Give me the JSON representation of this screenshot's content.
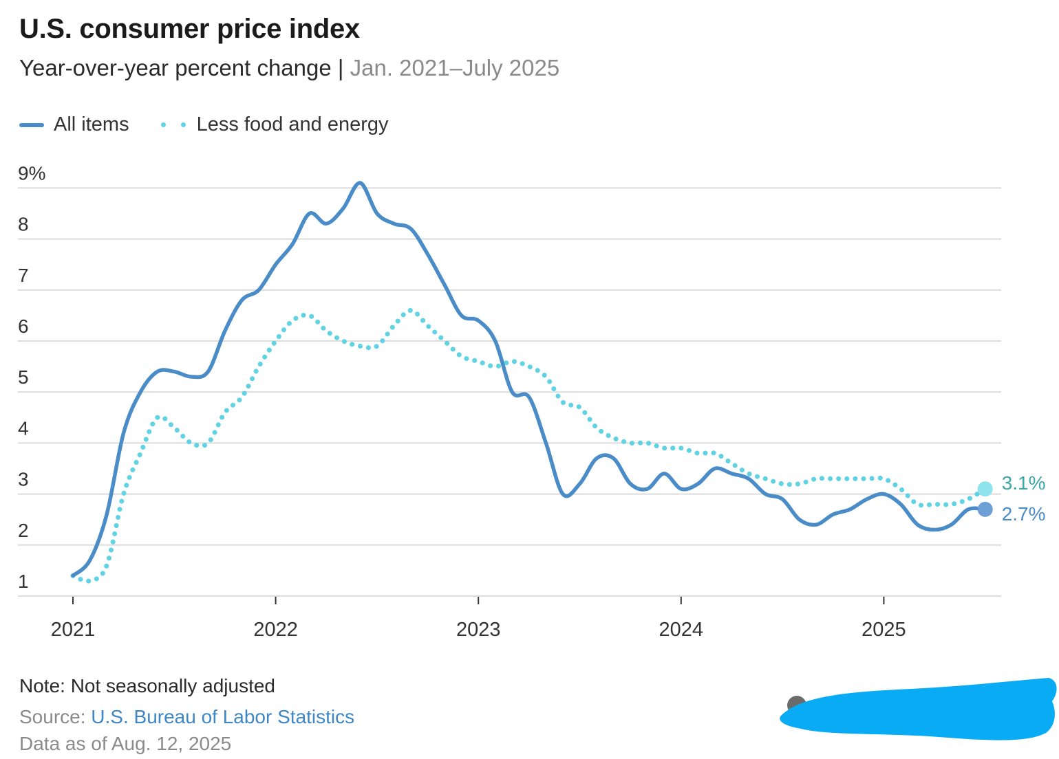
{
  "title": "U.S. consumer price index",
  "subtitle": "Year-over-year percent change",
  "subtitle_separator": " | ",
  "date_range": "Jan. 2021–July 2025",
  "legend": {
    "all_items": "All items",
    "core": "Less food and energy"
  },
  "note": "Note: Not seasonally adjusted",
  "source_label": "Source: ",
  "source_name": "U.S. Bureau of Labor Statistics",
  "data_as_of": "Data as of Aug. 12, 2025",
  "colors": {
    "all_items": "#4a8cc8",
    "core": "#5fd3e3",
    "end_label_all": "#4a8cc8",
    "end_label_core": "#3aa6a6",
    "grid": "#dcdcdc",
    "axis_text": "#333333",
    "redaction": "#0aabf5"
  },
  "chart_data": {
    "type": "line",
    "title": "U.S. consumer price index",
    "ylim": [
      1,
      9
    ],
    "y_ticks": [
      1,
      2,
      3,
      4,
      5,
      6,
      7,
      8,
      9
    ],
    "y_tick_labels": [
      "1",
      "2",
      "3",
      "4",
      "5",
      "6",
      "7",
      "8",
      "9%"
    ],
    "x_start": "2021-01",
    "x_ticks": [
      "2021",
      "2022",
      "2023",
      "2024",
      "2025"
    ],
    "end_labels": {
      "all_items": "2.7%",
      "core": "3.1%"
    },
    "series": [
      {
        "name": "All items",
        "style": "solid",
        "values": [
          1.4,
          1.7,
          2.6,
          4.2,
          5.0,
          5.4,
          5.4,
          5.3,
          5.4,
          6.2,
          6.8,
          7.0,
          7.5,
          7.9,
          8.5,
          8.3,
          8.6,
          9.1,
          8.5,
          8.3,
          8.2,
          7.7,
          7.1,
          6.5,
          6.4,
          6.0,
          5.0,
          4.9,
          4.0,
          3.0,
          3.2,
          3.7,
          3.7,
          3.2,
          3.1,
          3.4,
          3.1,
          3.2,
          3.5,
          3.4,
          3.3,
          3.0,
          2.9,
          2.5,
          2.4,
          2.6,
          2.7,
          2.9,
          3.0,
          2.8,
          2.4,
          2.3,
          2.4,
          2.7,
          2.7
        ]
      },
      {
        "name": "Less food and energy",
        "style": "dotted",
        "values": [
          1.4,
          1.3,
          1.6,
          3.0,
          3.8,
          4.5,
          4.3,
          4.0,
          4.0,
          4.6,
          4.9,
          5.5,
          6.0,
          6.4,
          6.5,
          6.2,
          6.0,
          5.9,
          5.9,
          6.3,
          6.6,
          6.3,
          6.0,
          5.7,
          5.6,
          5.5,
          5.6,
          5.5,
          5.3,
          4.8,
          4.7,
          4.3,
          4.1,
          4.0,
          4.0,
          3.9,
          3.9,
          3.8,
          3.8,
          3.6,
          3.4,
          3.3,
          3.2,
          3.2,
          3.3,
          3.3,
          3.3,
          3.3,
          3.3,
          3.1,
          2.8,
          2.8,
          2.8,
          2.9,
          3.1
        ]
      }
    ]
  }
}
